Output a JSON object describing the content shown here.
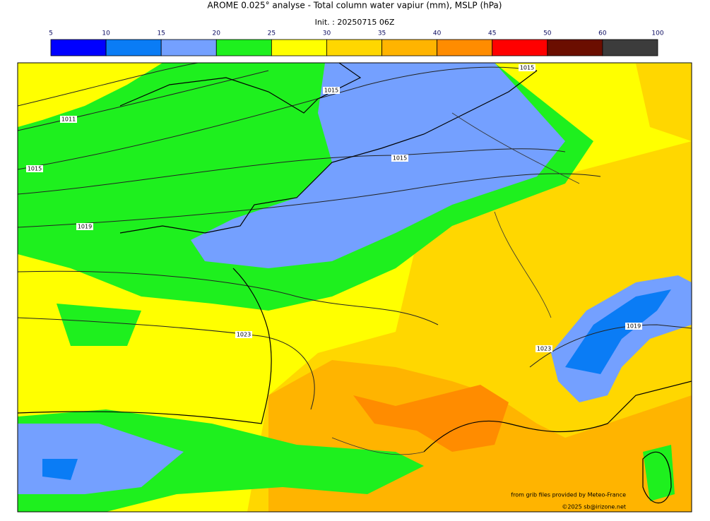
{
  "header": {
    "title": "AROME 0.025° analyse - Total column water vapiur (mm), MSLP (hPa)",
    "subtitle": "Init. : 20250715 06Z"
  },
  "colorbar": {
    "levels": [
      5,
      10,
      15,
      20,
      25,
      30,
      35,
      40,
      45,
      50,
      60,
      100
    ],
    "colors": [
      "#0000ff",
      "#0a7cf5",
      "#74a0ff",
      "#1ef01e",
      "#ffff00",
      "#ffd700",
      "#ffb400",
      "#ff8c00",
      "#ff0000",
      "#6b0e00",
      "#3c3c3c"
    ]
  },
  "isobar_labels": [
    1015,
    1015,
    1011,
    1015,
    1015,
    1019,
    1023,
    1023,
    1019
  ],
  "credits": [
    "from grib files provided by Meteo-France",
    "©2025 sb@irizone.net"
  ]
}
